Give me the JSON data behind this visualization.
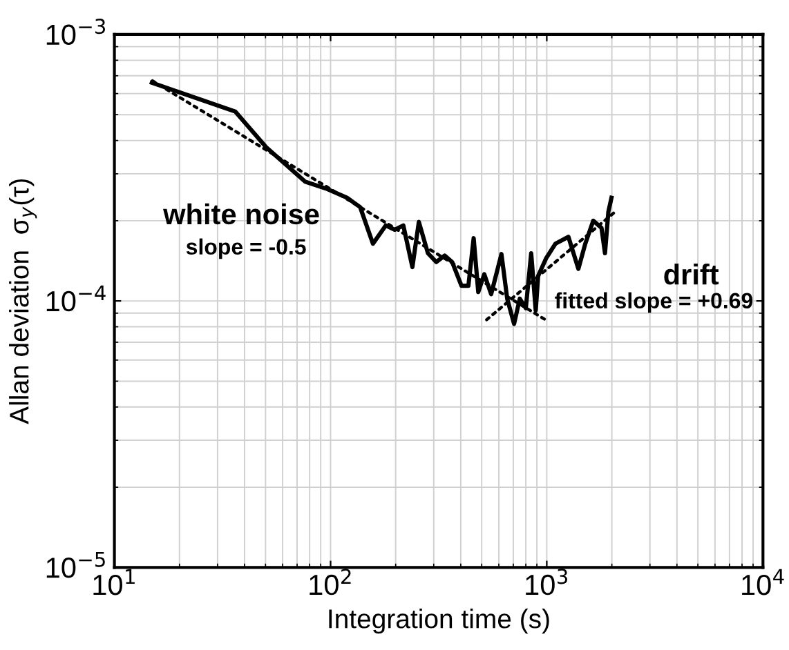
{
  "chart_data": {
    "type": "line",
    "xlabel": "Integration time (s)",
    "ylabel": "Allan deviation  σ$_{y}$(τ)",
    "log": "xy",
    "grid": true,
    "xlim": [
      10,
      10000
    ],
    "ylim": [
      1e-05,
      0.001
    ],
    "xticks": [
      {
        "value": 10,
        "label": "10$^{1}$"
      },
      {
        "value": 100,
        "label": "10$^{2}$"
      },
      {
        "value": 1000,
        "label": "10$^{3}$"
      },
      {
        "value": 10000,
        "label": "10$^{4}$"
      }
    ],
    "yticks": [
      {
        "value": 1e-05,
        "label": "10$^{−5}$"
      },
      {
        "value": 0.0001,
        "label": "10$^{−4}$"
      },
      {
        "value": 0.001,
        "label": "10$^{−3}$"
      }
    ],
    "series": [
      {
        "color": "#000000",
        "line_style": "solid",
        "x": [
          14.9,
          36.2,
          50.4,
          76.4,
          95.3,
          119,
          137,
          157,
          180,
          198,
          217,
          239,
          256,
          282,
          308,
          337,
          365,
          403,
          434,
          459,
          482,
          514,
          553,
          617,
          656,
          706,
          750,
          800,
          847,
          889,
          912,
          995,
          1097,
          1259,
          1400,
          1507,
          1640,
          1791,
          1859,
          1927,
          1992
        ],
        "values": [
          0.000659,
          0.000514,
          0.000377,
          0.00028,
          0.000264,
          0.000244,
          0.000225,
          0.000164,
          0.000192,
          0.000185,
          0.000192,
          0.000134,
          0.000198,
          0.000151,
          0.00014,
          0.000148,
          0.00014,
          0.000114,
          0.000114,
          0.000172,
          0.000108,
          0.000126,
          0.000106,
          0.00015,
          0.000102,
          8.2e-05,
          0.000102,
          9.4e-05,
          0.000151,
          9.2e-05,
          0.000124,
          0.000145,
          0.000164,
          0.000174,
          0.000132,
          0.000164,
          0.0002,
          0.000188,
          0.000151,
          0.000216,
          0.000244
        ]
      },
      {
        "color": "#000000",
        "line_style": "dotted",
        "x": [
          15,
          1010
        ],
        "values": [
          0.00067,
          8.4e-05
        ]
      },
      {
        "color": "#000000",
        "line_style": "dotted",
        "x": [
          527,
          2070
        ],
        "values": [
          8.5e-05,
          0.000216
        ]
      }
    ],
    "annotations": [
      "white noise",
      "slope = -0.5",
      "drift",
      "fitted slope = +0.69"
    ]
  }
}
